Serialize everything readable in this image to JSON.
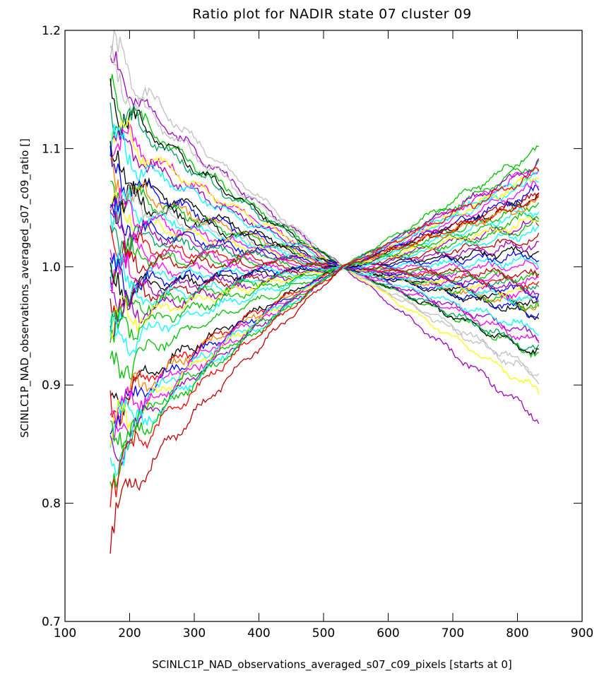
{
  "chart_data": {
    "type": "line",
    "title": "Ratio plot for NADIR state 07 cluster 09",
    "xlabel": "SCINLC1P_NAD_observations_averaged_s07_c09_pixels [starts at 0]",
    "ylabel": "SCINLC1P_NAD_observations_averaged_s07_c09_ratio []",
    "xlim": [
      100,
      900
    ],
    "ylim": [
      0.7,
      1.2
    ],
    "xticks": [
      "100",
      "200",
      "300",
      "400",
      "500",
      "600",
      "700",
      "800",
      "900"
    ],
    "yticks": [
      "0.7",
      "0.8",
      "0.9",
      "1.0",
      "1.1",
      "1.2"
    ],
    "grid": false,
    "x_range": [
      170,
      835
    ],
    "pivot": {
      "x": 530,
      "y": 1.0
    },
    "series": [
      {
        "color": "#c0c0c0",
        "start": 1.185,
        "end": 0.905
      },
      {
        "color": "#a000c0",
        "start": 1.17,
        "end": 0.87
      },
      {
        "color": "#c0c0c0",
        "start": 1.165,
        "end": 0.91
      },
      {
        "color": "#00c000",
        "start": 1.15,
        "end": 0.925
      },
      {
        "color": "#000000",
        "start": 1.145,
        "end": 0.925
      },
      {
        "color": "#00a060",
        "start": 1.14,
        "end": 0.928
      },
      {
        "color": "#ff00ff",
        "start": 1.12,
        "end": 0.935
      },
      {
        "color": "#ffff00",
        "start": 1.12,
        "end": 0.893
      },
      {
        "color": "#a000c0",
        "start": 1.11,
        "end": 0.94
      },
      {
        "color": "#00ffff",
        "start": 1.105,
        "end": 0.945
      },
      {
        "color": "#000000",
        "start": 1.085,
        "end": 0.958
      },
      {
        "color": "#0000ff",
        "start": 1.08,
        "end": 0.96
      },
      {
        "color": "#ff8000",
        "start": 1.075,
        "end": 0.965
      },
      {
        "color": "#00c000",
        "start": 1.07,
        "end": 0.965
      },
      {
        "color": "#000000",
        "start": 1.065,
        "end": 0.968
      },
      {
        "color": "#c0c0c0",
        "start": 1.06,
        "end": 0.97
      },
      {
        "color": "#00ffff",
        "start": 1.055,
        "end": 0.97
      },
      {
        "color": "#ff00ff",
        "start": 1.05,
        "end": 0.973
      },
      {
        "color": "#ffff00",
        "start": 1.045,
        "end": 0.975
      },
      {
        "color": "#0000ff",
        "start": 1.04,
        "end": 0.978
      },
      {
        "color": "#a000c0",
        "start": 1.035,
        "end": 0.98
      },
      {
        "color": "#00a060",
        "start": 1.03,
        "end": 0.983
      },
      {
        "color": "#ff0000",
        "start": 1.02,
        "end": 0.985
      },
      {
        "color": "#ff00ff",
        "start": 1.015,
        "end": 0.988
      },
      {
        "color": "#00c000",
        "start": 1.01,
        "end": 0.99
      },
      {
        "color": "#c00000",
        "start": 1.005,
        "end": 0.993
      },
      {
        "color": "#ff00ff",
        "start": 0.995,
        "end": 1.0
      },
      {
        "color": "#00ffff",
        "start": 0.99,
        "end": 1.005
      },
      {
        "color": "#0000ff",
        "start": 0.985,
        "end": 1.01
      },
      {
        "color": "#000000",
        "start": 0.98,
        "end": 1.015
      },
      {
        "color": "#a000c0",
        "start": 0.975,
        "end": 1.02
      },
      {
        "color": "#c00000",
        "start": 0.97,
        "end": 1.025
      },
      {
        "color": "#00ffff",
        "start": 0.965,
        "end": 1.03
      },
      {
        "color": "#00c000",
        "start": 0.96,
        "end": 1.035
      },
      {
        "color": "#a000c0",
        "start": 0.955,
        "end": 1.038
      },
      {
        "color": "#ffff00",
        "start": 0.95,
        "end": 1.04
      },
      {
        "color": "#00c000",
        "start": 0.94,
        "end": 1.045
      },
      {
        "color": "#00ffff",
        "start": 0.93,
        "end": 1.05
      },
      {
        "color": "#00c000",
        "start": 0.91,
        "end": 1.055
      },
      {
        "color": "#000000",
        "start": 0.885,
        "end": 1.06
      },
      {
        "color": "#ff0000",
        "start": 0.88,
        "end": 1.058
      },
      {
        "color": "#ff8000",
        "start": 0.875,
        "end": 1.055
      },
      {
        "color": "#0000ff",
        "start": 0.87,
        "end": 1.065
      },
      {
        "color": "#ff00ff",
        "start": 0.865,
        "end": 1.07
      },
      {
        "color": "#00ffff",
        "start": 0.86,
        "end": 1.075
      },
      {
        "color": "#ffff00",
        "start": 0.855,
        "end": 1.078
      },
      {
        "color": "#ff00ff",
        "start": 0.85,
        "end": 1.085
      },
      {
        "color": "#00c000",
        "start": 0.845,
        "end": 1.09
      },
      {
        "color": "#a000c0",
        "start": 0.84,
        "end": 1.088
      },
      {
        "color": "#00ffff",
        "start": 0.835,
        "end": 1.08
      },
      {
        "color": "#00c000",
        "start": 0.83,
        "end": 1.1
      },
      {
        "color": "#ff0000",
        "start": 0.82,
        "end": 1.08
      },
      {
        "color": "#c00000",
        "start": 0.785,
        "end": 1.06
      }
    ]
  }
}
